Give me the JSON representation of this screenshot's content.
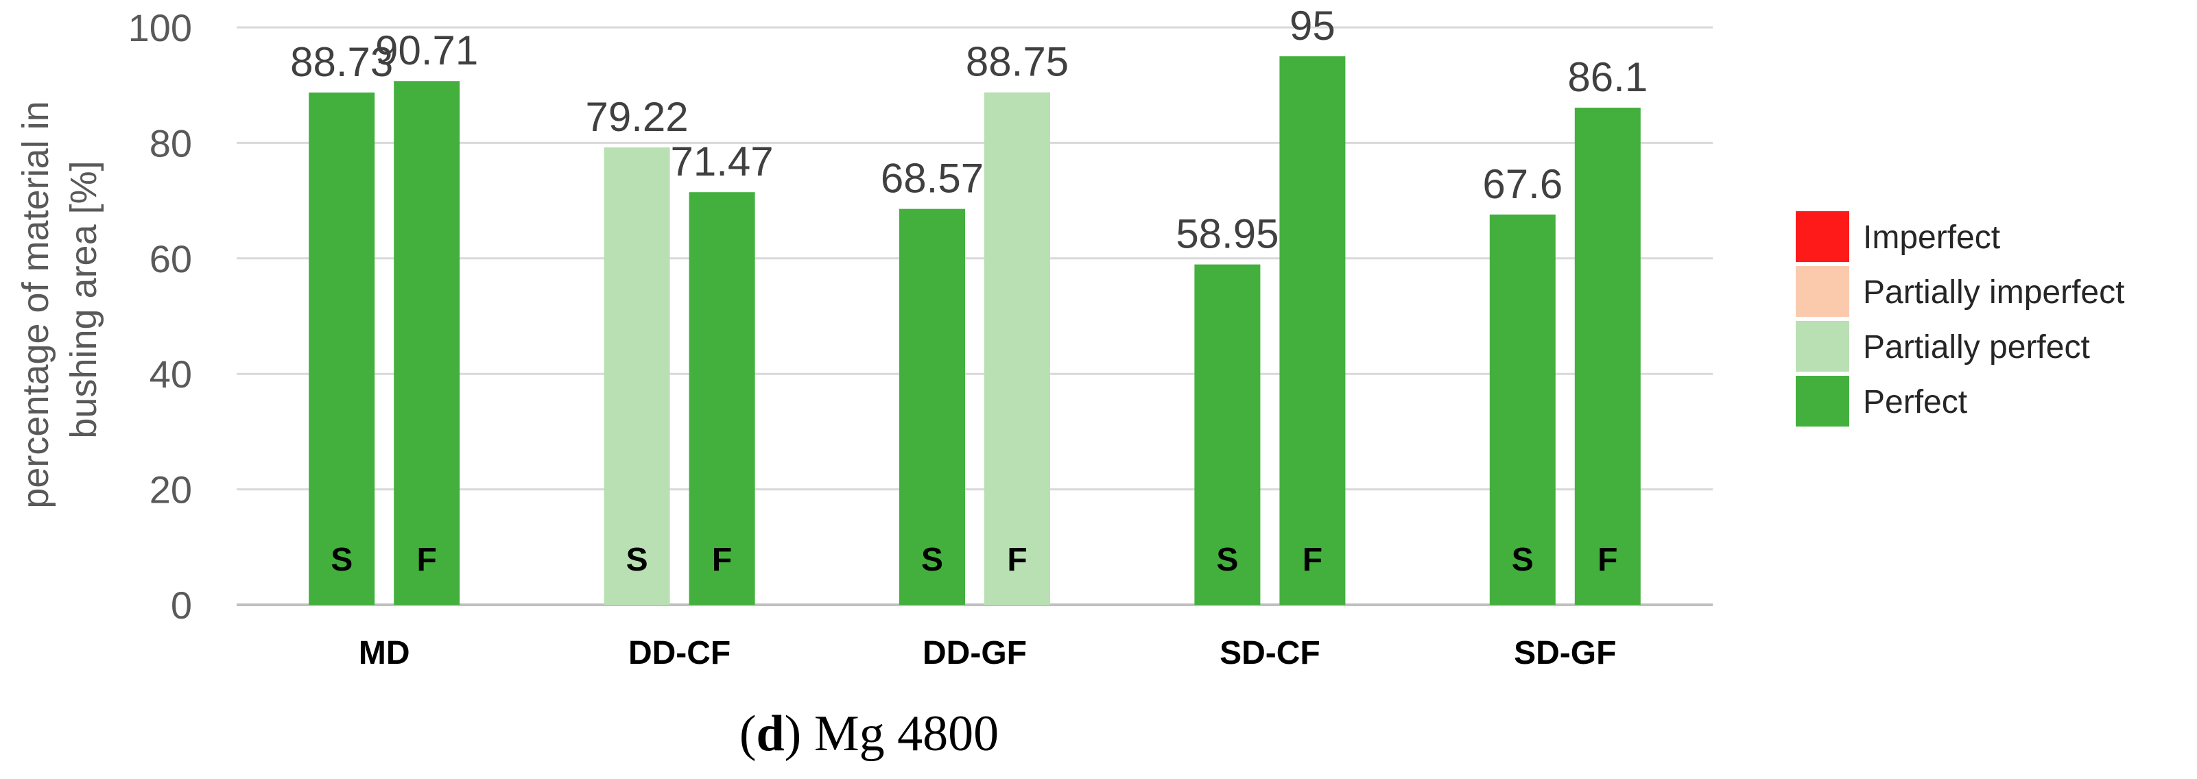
{
  "chart_data": {
    "type": "bar",
    "title": "",
    "caption_letter": "d",
    "caption_text": "Mg 4800",
    "ylabel_line1": "percentage of material in",
    "ylabel_line2": "bushing area [%]",
    "xlabel": "",
    "ylim": [
      0,
      100
    ],
    "yticks": [
      0,
      20,
      40,
      60,
      80,
      100
    ],
    "categories": [
      "MD",
      "DD-CF",
      "DD-GF",
      "SD-CF",
      "SD-GF"
    ],
    "bar_labels": [
      "S",
      "F"
    ],
    "values": [
      [
        88.73,
        90.71
      ],
      [
        79.22,
        71.47
      ],
      [
        68.57,
        88.75
      ],
      [
        58.95,
        95
      ],
      [
        67.6,
        86.1
      ]
    ],
    "bar_classes": [
      [
        "Perfect",
        "Perfect"
      ],
      [
        "Partially perfect",
        "Perfect"
      ],
      [
        "Perfect",
        "Partially perfect"
      ],
      [
        "Perfect",
        "Perfect"
      ],
      [
        "Perfect",
        "Perfect"
      ]
    ],
    "legend": [
      {
        "name": "Imperfect",
        "color": "#ff1a1a"
      },
      {
        "name": "Partially imperfect",
        "color": "#fbcaad"
      },
      {
        "name": "Partially perfect",
        "color": "#b8e0b2"
      },
      {
        "name": "Perfect",
        "color": "#43b03d"
      }
    ],
    "grid": true,
    "legend_position": "right"
  }
}
